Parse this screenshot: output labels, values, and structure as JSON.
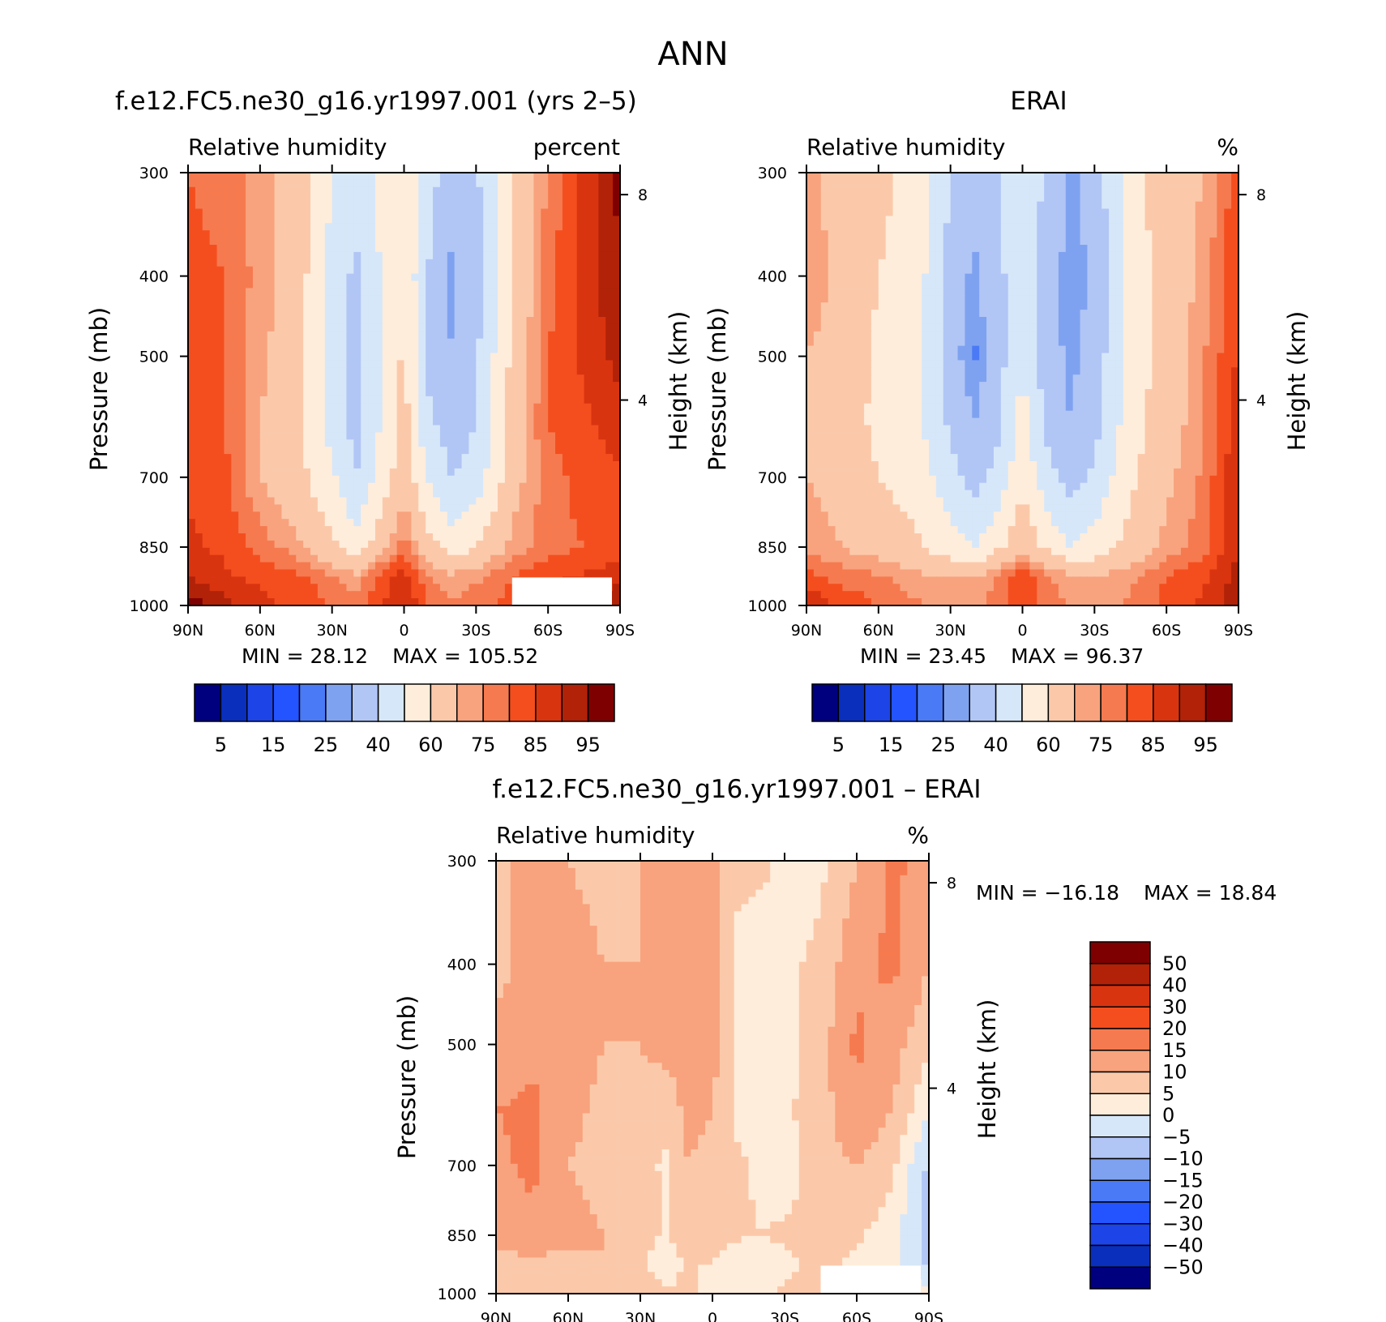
{
  "figure_title": "ANN",
  "colors": {
    "abs_levels": [
      "#00007f",
      "#0a2fbd",
      "#1d44e6",
      "#2354ff",
      "#4a7af5",
      "#7fa2f0",
      "#b1c6f5",
      "#d6e7f9",
      "#ffeddb",
      "#fbc9aa",
      "#f8a37e",
      "#f67a4f",
      "#f44e1f",
      "#d93410",
      "#b12208",
      "#7f0000"
    ],
    "diff_levels": [
      "#00007f",
      "#0a2fbd",
      "#1d44e6",
      "#2354ff",
      "#4a7af5",
      "#7fa2f0",
      "#b1c6f5",
      "#d6e7f9",
      "#ffeddb",
      "#fbc9aa",
      "#f8a37e",
      "#f67a4f",
      "#f44e1f",
      "#d93410",
      "#b12208",
      "#7f0000"
    ]
  },
  "chart_data": [
    {
      "type": "heatmap",
      "id": "model",
      "title": "f.e12.FC5.ne30_g16.yr1997.001 (yrs 2–5)",
      "left_subtitle": "Relative humidity",
      "right_subtitle": "percent",
      "ylabel": "Pressure (mb)",
      "y2label": "Height (km)",
      "x_ticks": [
        "90N",
        "60N",
        "30N",
        "0",
        "30S",
        "60S",
        "90S"
      ],
      "y_ticks": [
        300,
        400,
        500,
        700,
        850,
        1000
      ],
      "y2_ticks": [
        8,
        4
      ],
      "ylim": [
        1000,
        300
      ],
      "xlim": [
        90,
        -90
      ],
      "stats": {
        "min_label": "MIN =",
        "min": "28.12",
        "max_label": "MAX =",
        "max": "105.52"
      },
      "colorbar_labels": [
        "5",
        "15",
        "25",
        "40",
        "60",
        "75",
        "85",
        "95"
      ],
      "x": [
        -90,
        -75,
        -60,
        -45,
        -30,
        -20,
        -10,
        0,
        10,
        20,
        30,
        45,
        60,
        75,
        90
      ],
      "y": [
        300,
        400,
        500,
        600,
        700,
        850,
        925,
        1000
      ],
      "z": [
        [
          80,
          78,
          72,
          66,
          50,
          44,
          52,
          60,
          44,
          34,
          38,
          60,
          76,
          86,
          97
        ],
        [
          82,
          80,
          73,
          66,
          46,
          38,
          50,
          58,
          40,
          28,
          36,
          60,
          78,
          88,
          94
        ],
        [
          82,
          80,
          72,
          64,
          44,
          36,
          48,
          62,
          38,
          30,
          38,
          62,
          80,
          86,
          92
        ],
        [
          83,
          80,
          70,
          62,
          46,
          36,
          50,
          64,
          42,
          34,
          40,
          64,
          80,
          84,
          88
        ],
        [
          84,
          82,
          70,
          64,
          52,
          40,
          54,
          66,
          50,
          40,
          44,
          66,
          78,
          82,
          84
        ],
        [
          86,
          84,
          78,
          72,
          62,
          54,
          66,
          78,
          64,
          55,
          60,
          72,
          78,
          80,
          82
        ],
        [
          90,
          86,
          84,
          82,
          76,
          72,
          82,
          88,
          76,
          72,
          74,
          80,
          84,
          86,
          88
        ],
        [
          98,
          92,
          86,
          84,
          80,
          78,
          84,
          90,
          80,
          76,
          78,
          82,
          86,
          90,
          96
        ]
      ]
    },
    {
      "type": "heatmap",
      "id": "obs",
      "title": "ERAI",
      "left_subtitle": "Relative humidity",
      "right_subtitle": "%",
      "ylabel": "Pressure (mb)",
      "y2label": "Height (km)",
      "x_ticks": [
        "90N",
        "60N",
        "30N",
        "0",
        "30S",
        "60S",
        "90S"
      ],
      "y_ticks": [
        300,
        400,
        500,
        700,
        850,
        1000
      ],
      "y2_ticks": [
        8,
        4
      ],
      "ylim": [
        1000,
        300
      ],
      "xlim": [
        90,
        -90
      ],
      "stats": {
        "min_label": "MIN =",
        "min": "23.45",
        "max_label": "MAX =",
        "max": "96.37"
      },
      "colorbar_labels": [
        "5",
        "15",
        "25",
        "40",
        "60",
        "75",
        "85",
        "95"
      ],
      "x": [
        -90,
        -75,
        -60,
        -45,
        -30,
        -20,
        -10,
        0,
        10,
        20,
        30,
        45,
        60,
        75,
        90
      ],
      "y": [
        300,
        400,
        500,
        600,
        700,
        850,
        925,
        1000
      ],
      "z": [
        [
          72,
          66,
          62,
          58,
          40,
          34,
          40,
          48,
          38,
          28,
          34,
          56,
          66,
          70,
          84
        ],
        [
          74,
          68,
          60,
          56,
          36,
          28,
          38,
          46,
          36,
          26,
          32,
          54,
          64,
          72,
          84
        ],
        [
          70,
          66,
          58,
          54,
          34,
          24,
          36,
          50,
          34,
          28,
          34,
          54,
          64,
          74,
          86
        ],
        [
          68,
          64,
          58,
          54,
          38,
          30,
          38,
          54,
          38,
          30,
          36,
          56,
          66,
          74,
          88
        ],
        [
          70,
          66,
          60,
          56,
          44,
          36,
          44,
          58,
          44,
          36,
          42,
          58,
          68,
          76,
          90
        ],
        [
          74,
          70,
          66,
          62,
          54,
          50,
          58,
          68,
          58,
          50,
          54,
          64,
          72,
          78,
          90
        ],
        [
          82,
          78,
          76,
          72,
          70,
          70,
          76,
          84,
          76,
          72,
          70,
          74,
          80,
          84,
          92
        ],
        [
          90,
          84,
          80,
          76,
          72,
          72,
          78,
          86,
          78,
          74,
          72,
          76,
          82,
          86,
          94
        ]
      ]
    },
    {
      "type": "heatmap",
      "id": "diff",
      "title": "f.e12.FC5.ne30_g16.yr1997.001 – ERAI",
      "left_subtitle": "Relative humidity",
      "right_subtitle": "%",
      "ylabel": "Pressure (mb)",
      "y2label": "Height (km)",
      "x_ticks": [
        "90N",
        "60N",
        "30N",
        "0",
        "30S",
        "60S",
        "90S"
      ],
      "y_ticks": [
        300,
        400,
        500,
        700,
        850,
        1000
      ],
      "y2_ticks": [
        8,
        4
      ],
      "ylim": [
        1000,
        300
      ],
      "xlim": [
        90,
        -90
      ],
      "stats": {
        "min_label": "MIN =",
        "min": "−16.18",
        "max_label": "MAX =",
        "max": "18.84"
      },
      "colorbar_labels": [
        "50",
        "40",
        "30",
        "20",
        "15",
        "10",
        "5",
        "0",
        "−5",
        "−10",
        "−15",
        "−20",
        "−30",
        "−40",
        "−50"
      ],
      "x": [
        -90,
        -75,
        -60,
        -45,
        -30,
        -20,
        -10,
        0,
        10,
        20,
        30,
        45,
        60,
        75,
        90
      ],
      "y": [
        300,
        400,
        500,
        600,
        700,
        850,
        925,
        1000
      ],
      "z": [
        [
          8,
          12,
          10,
          8,
          10,
          10,
          12,
          12,
          6,
          6,
          4,
          4,
          10,
          16,
          13
        ],
        [
          8,
          12,
          13,
          10,
          10,
          10,
          12,
          12,
          4,
          2,
          4,
          6,
          14,
          16,
          10
        ],
        [
          12,
          14,
          14,
          10,
          10,
          12,
          12,
          12,
          4,
          2,
          2,
          8,
          16,
          12,
          6
        ],
        [
          15,
          16,
          12,
          8,
          8,
          6,
          12,
          10,
          4,
          4,
          4,
          8,
          14,
          10,
          0
        ],
        [
          14,
          16,
          10,
          8,
          8,
          4,
          10,
          8,
          6,
          4,
          2,
          8,
          10,
          6,
          -6
        ],
        [
          12,
          14,
          12,
          10,
          8,
          4,
          8,
          10,
          6,
          5,
          6,
          8,
          6,
          2,
          -8
        ],
        [
          8,
          8,
          8,
          10,
          6,
          2,
          6,
          4,
          0,
          0,
          4,
          6,
          4,
          2,
          -6
        ],
        [
          8,
          8,
          6,
          8,
          8,
          6,
          6,
          4,
          2,
          4,
          6,
          6,
          4,
          4,
          2
        ]
      ]
    }
  ]
}
